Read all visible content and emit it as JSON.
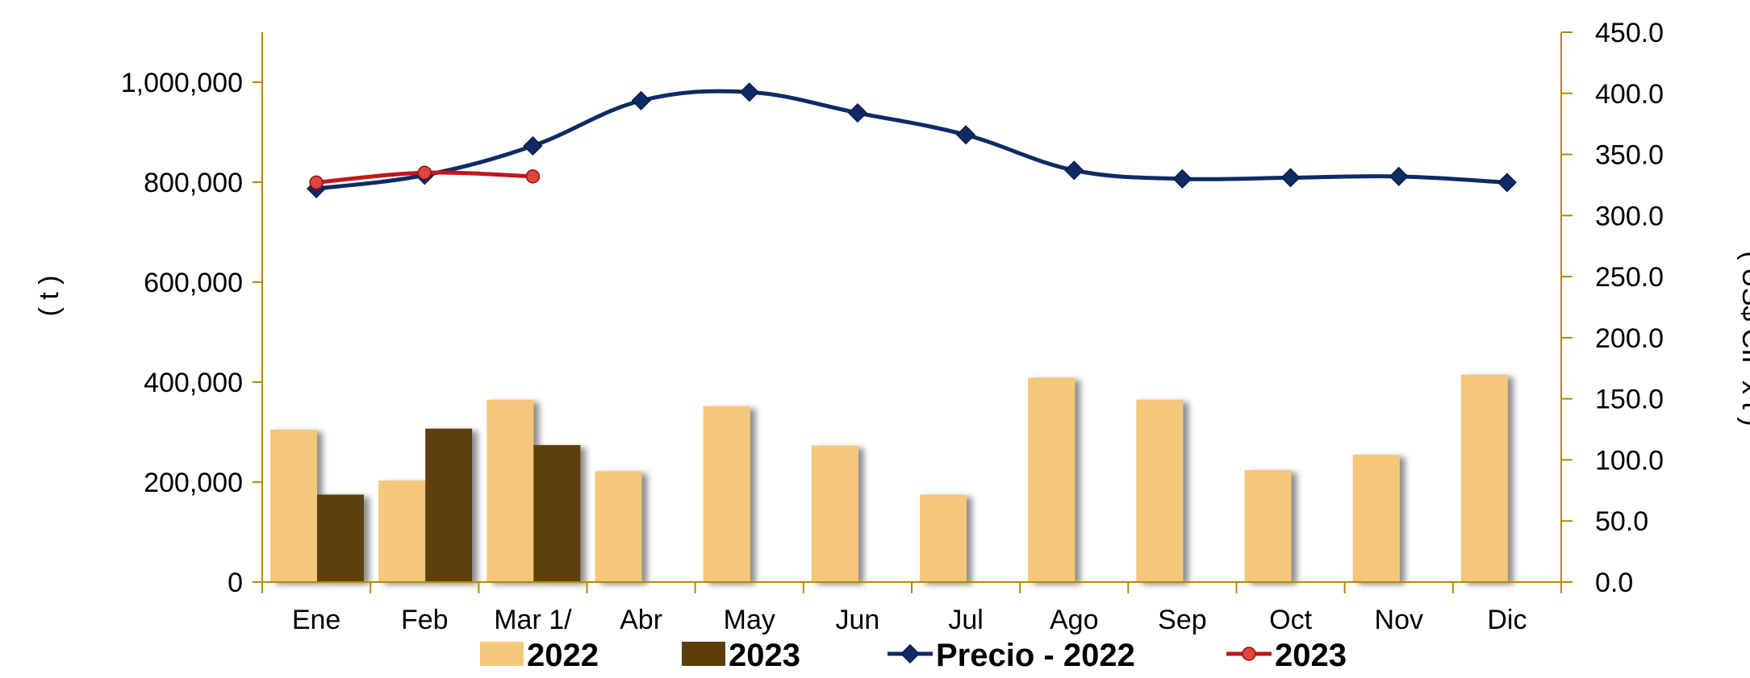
{
  "chart_data": {
    "type": "bar",
    "categories": [
      "Ene",
      "Feb",
      "Mar 1/",
      "Abr",
      "May",
      "Jun",
      "Jul",
      "Ago",
      "Sep",
      "Oct",
      "Nov",
      "Dic"
    ],
    "series": [
      {
        "name": "2022",
        "kind": "bar",
        "axis": "left",
        "color": "#F4C77A",
        "values": [
          305000,
          203000,
          365000,
          222000,
          352000,
          273000,
          175000,
          409000,
          365000,
          224000,
          255000,
          415000
        ]
      },
      {
        "name": "2023",
        "kind": "bar",
        "axis": "left",
        "color": "#5C3F08",
        "values": [
          175000,
          307000,
          274000,
          null,
          null,
          null,
          null,
          null,
          null,
          null,
          null,
          null
        ]
      },
      {
        "name": "Precio - 2022",
        "kind": "line",
        "axis": "right",
        "color": "#0F2B66",
        "marker": "diamond",
        "values": [
          322,
          333,
          357,
          394,
          401,
          384,
          366,
          337,
          330,
          331,
          332,
          327
        ]
      },
      {
        "name": "2023",
        "kind": "line",
        "axis": "right",
        "color": "#C0161C",
        "marker": "circle",
        "values": [
          327,
          335,
          332,
          null,
          null,
          null,
          null,
          null,
          null,
          null,
          null,
          null
        ]
      }
    ],
    "ylabel": "( t )",
    "y2label": "( US$ CIF x t )",
    "ylim": [
      0,
      1100000
    ],
    "y2lim": [
      0,
      450
    ],
    "yticks": [
      "0",
      "200,000",
      "400,000",
      "600,000",
      "800,000",
      "1,000,000"
    ],
    "y2ticks": [
      "0.0",
      "50.0",
      "100.0",
      "150.0",
      "200.0",
      "250.0",
      "300.0",
      "350.0",
      "400.0",
      "450.0"
    ],
    "grid": false,
    "legend_position": "bottom",
    "axis_color": "#B8860B"
  }
}
